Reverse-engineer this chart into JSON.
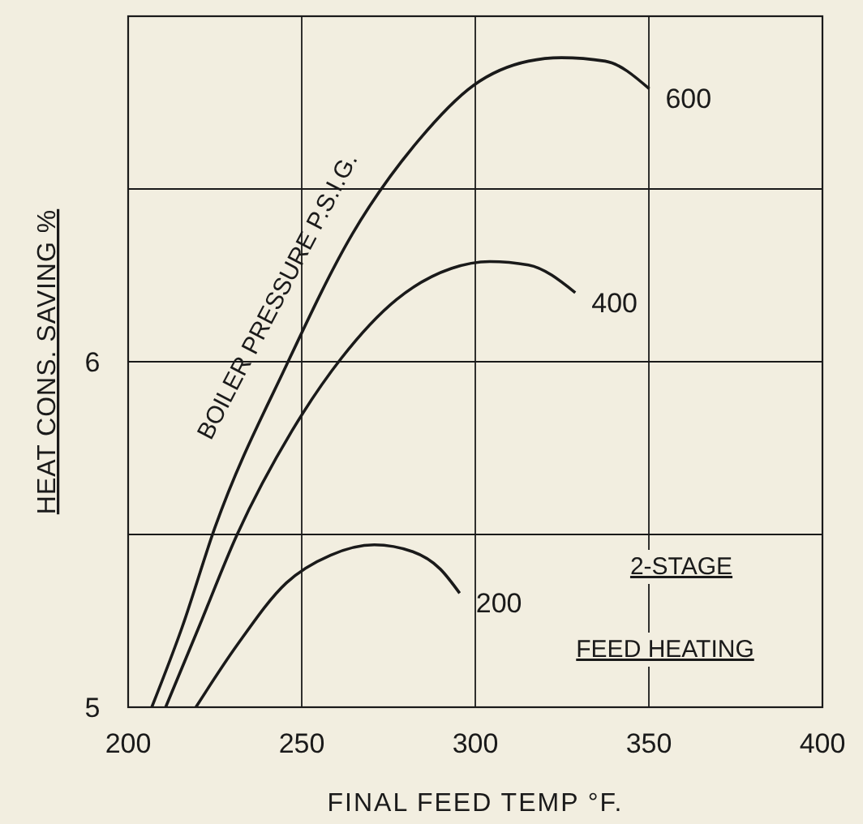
{
  "chart_data": {
    "type": "line",
    "xlabel": "FINAL FEED TEMP °F.",
    "ylabel": "HEAT CONS. SAVING %",
    "xlim": [
      200,
      400
    ],
    "xticks": [
      200,
      250,
      300,
      350,
      400
    ],
    "ylim": [
      5,
      7
    ],
    "yticks": [
      5,
      {
        "value": 5.5,
        "label": null
      },
      6,
      {
        "value": 6.5,
        "label": null
      }
    ],
    "grid": true,
    "marker": "none",
    "line_style": "solid",
    "annotations": [
      "BOILER PRESSURE P.S.I.G.",
      "2-STAGE",
      "FEED HEATING"
    ],
    "series": [
      {
        "name": "600",
        "color": "#1a1a1a",
        "x": [
          206.8,
          215.5,
          225,
          245.6,
          264.6,
          283.6,
          299.5,
          315.3,
          324.8,
          337.4,
          350.1
        ],
        "values": [
          5,
          5.23,
          5.52,
          5.99,
          6.37,
          6.64,
          6.8,
          6.87,
          6.88,
          6.87,
          6.79
        ]
      },
      {
        "name": "400",
        "color": "#1a1a1a",
        "x": [
          210.8,
          220.3,
          231.4,
          247.2,
          261.4,
          277.3,
          293.1,
          304.2,
          315.3,
          328.8
        ],
        "values": [
          5,
          5.23,
          5.5,
          5.8,
          6.01,
          6.18,
          6.27,
          6.29,
          6.28,
          6.2
        ]
      },
      {
        "name": "200",
        "color": "#1a1a1a",
        "x": [
          219.5,
          231.4,
          245.6,
          258.3,
          270.9,
          282,
          289.9,
          295.5
        ],
        "values": [
          5,
          5.18,
          5.36,
          5.44,
          5.47,
          5.45,
          5.4,
          5.33
        ]
      }
    ]
  }
}
